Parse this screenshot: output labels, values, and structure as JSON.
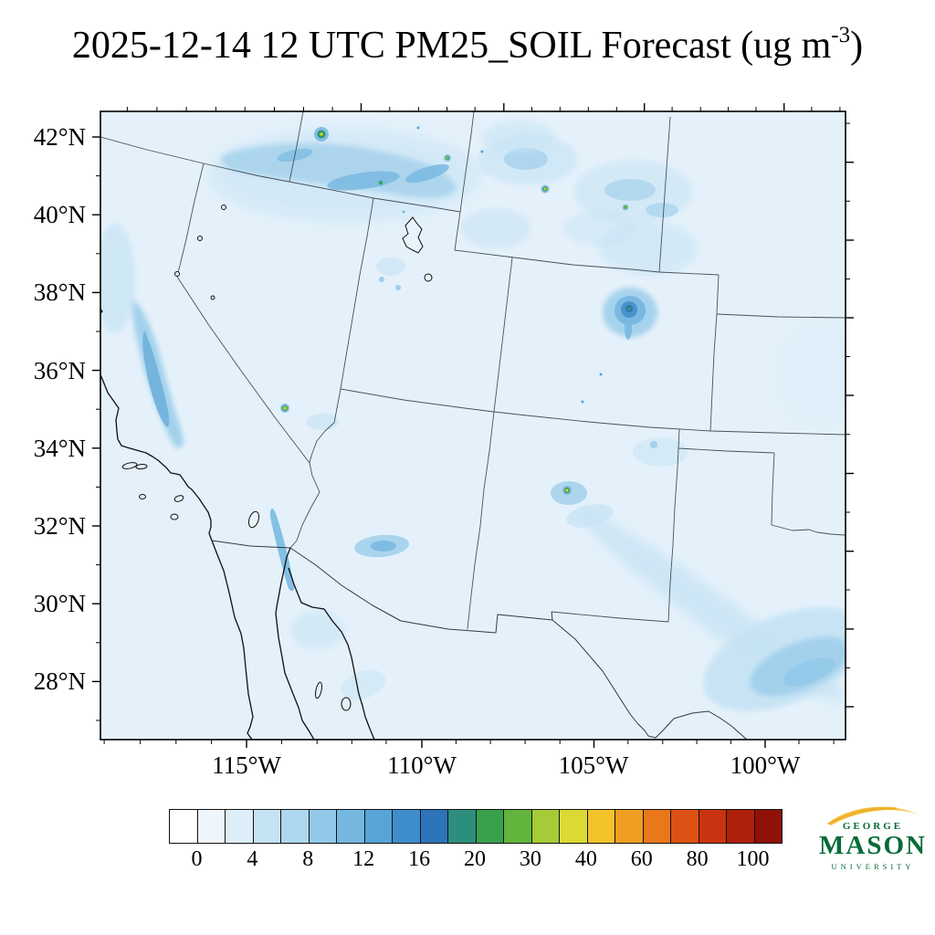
{
  "title": {
    "prefix": "2025-12-14 12 UTC PM25_SOIL Forecast (ug m",
    "exponent": "-3",
    "suffix": ")"
  },
  "chart_data": {
    "type": "heatmap",
    "title": "2025-12-14 12 UTC PM25_SOIL Forecast (ug m^-3)",
    "variable": "PM25_SOIL",
    "units": "ug m^-3",
    "valid_time": "2025-12-14 12 UTC",
    "region": "Southwestern United States and northern Mexico",
    "projection": "Lambert conformal",
    "x_axis": {
      "label_type": "longitude",
      "ticks": [
        "115°W",
        "110°W",
        "105°W",
        "100°W"
      ]
    },
    "y_axis": {
      "label_type": "latitude",
      "ticks": [
        "42°N",
        "40°N",
        "38°N",
        "36°N",
        "34°N",
        "32°N",
        "30°N",
        "28°N"
      ]
    },
    "colorbar": {
      "levels": [
        0,
        2,
        4,
        6,
        8,
        10,
        12,
        14,
        16,
        18,
        20,
        25,
        30,
        35,
        40,
        50,
        60,
        70,
        80,
        90,
        100
      ],
      "tick_labels": [
        "0",
        "4",
        "8",
        "12",
        "16",
        "20",
        "30",
        "40",
        "60",
        "80",
        "100"
      ],
      "colors": [
        "#ffffff",
        "#eef6fb",
        "#ddeef8",
        "#c6e3f4",
        "#add7ef",
        "#92c9e8",
        "#74b8e0",
        "#57a4d7",
        "#3f8dca",
        "#2d74ba",
        "#2e8e7e",
        "#39a04c",
        "#63b43c",
        "#a5cb38",
        "#dcd934",
        "#f4c32b",
        "#f09e21",
        "#e8781a",
        "#dd5114",
        "#c93410",
        "#ad200c",
        "#8f1108"
      ]
    },
    "field_summary": "Background 0-2 ug/m3 everywhere; light plumes 2-8 ug/m3 over the California Central Valley, northern Nevada, Wyoming, central Colorado, southern Arizona and west Texas/Chihuahua; isolated dust hotspots reaching 16-30 ug/m3 in northern Nevada, north Utah, Wyoming, central Nevada, central Colorado and central New Mexico"
  },
  "map": {
    "background_color": "#e4f1fa",
    "state_border_color": "#46525c",
    "coast_color": "#101010"
  },
  "logo": {
    "line1": "GEORGE",
    "line2": "MASON",
    "line3": "UNIVERSITY",
    "green": "#046b38",
    "gold": "#f6c23c"
  }
}
